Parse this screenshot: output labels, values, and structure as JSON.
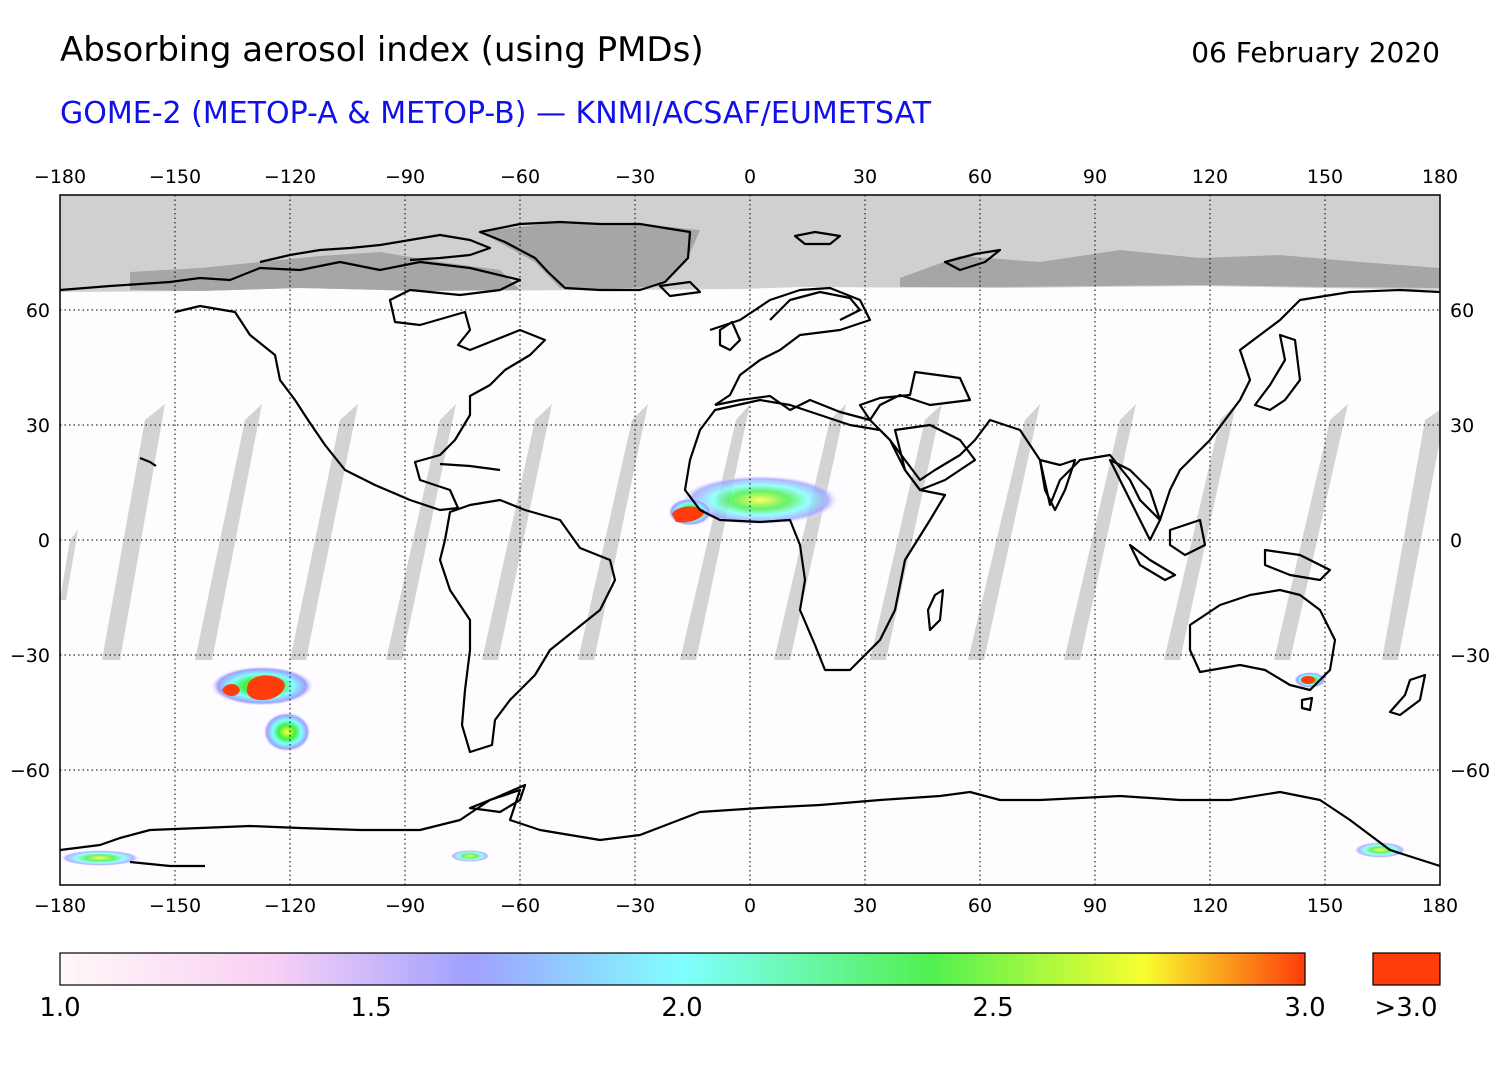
{
  "header": {
    "title": "Absorbing aerosol index (using PMDs)",
    "date": "06 February 2020",
    "subtitle": "GOME-2 (METOP-A & METOP-B) — KNMI/ACSAF/EUMETSAT"
  },
  "map": {
    "projection": "equirectangular",
    "lon_range": [
      -180,
      180
    ],
    "lat_range": [
      -90,
      90
    ],
    "lon_ticks": [
      -180,
      -150,
      -120,
      -90,
      -60,
      -30,
      0,
      30,
      60,
      90,
      120,
      150,
      180
    ],
    "lat_ticks": [
      60,
      30,
      0,
      -30,
      -60
    ],
    "lon_tick_labels": [
      "−180",
      "−150",
      "−120",
      "−90",
      "−60",
      "−30",
      "0",
      "30",
      "60",
      "90",
      "120",
      "150",
      "180"
    ],
    "lat_tick_labels": [
      "60",
      "30",
      "0",
      "−30",
      "−60"
    ],
    "grid": "dotted",
    "no_data_color": "#d0d0d0",
    "land_no_data_color": "#a6a6a6",
    "coastline_color": "#000000"
  },
  "colorbar": {
    "labels": [
      "1.0",
      "1.5",
      "2.0",
      "2.5",
      "3.0"
    ],
    "values": [
      1.0,
      1.5,
      2.0,
      2.5,
      3.0
    ],
    "overflow_label": ">3.0",
    "overflow_color": "#ff3c0a",
    "gradient_stops": [
      "#fff8f8",
      "#f8d0f4",
      "#a0a0ff",
      "#80ffff",
      "#50f050",
      "#f8ff30",
      "#ff3c0a"
    ]
  }
}
